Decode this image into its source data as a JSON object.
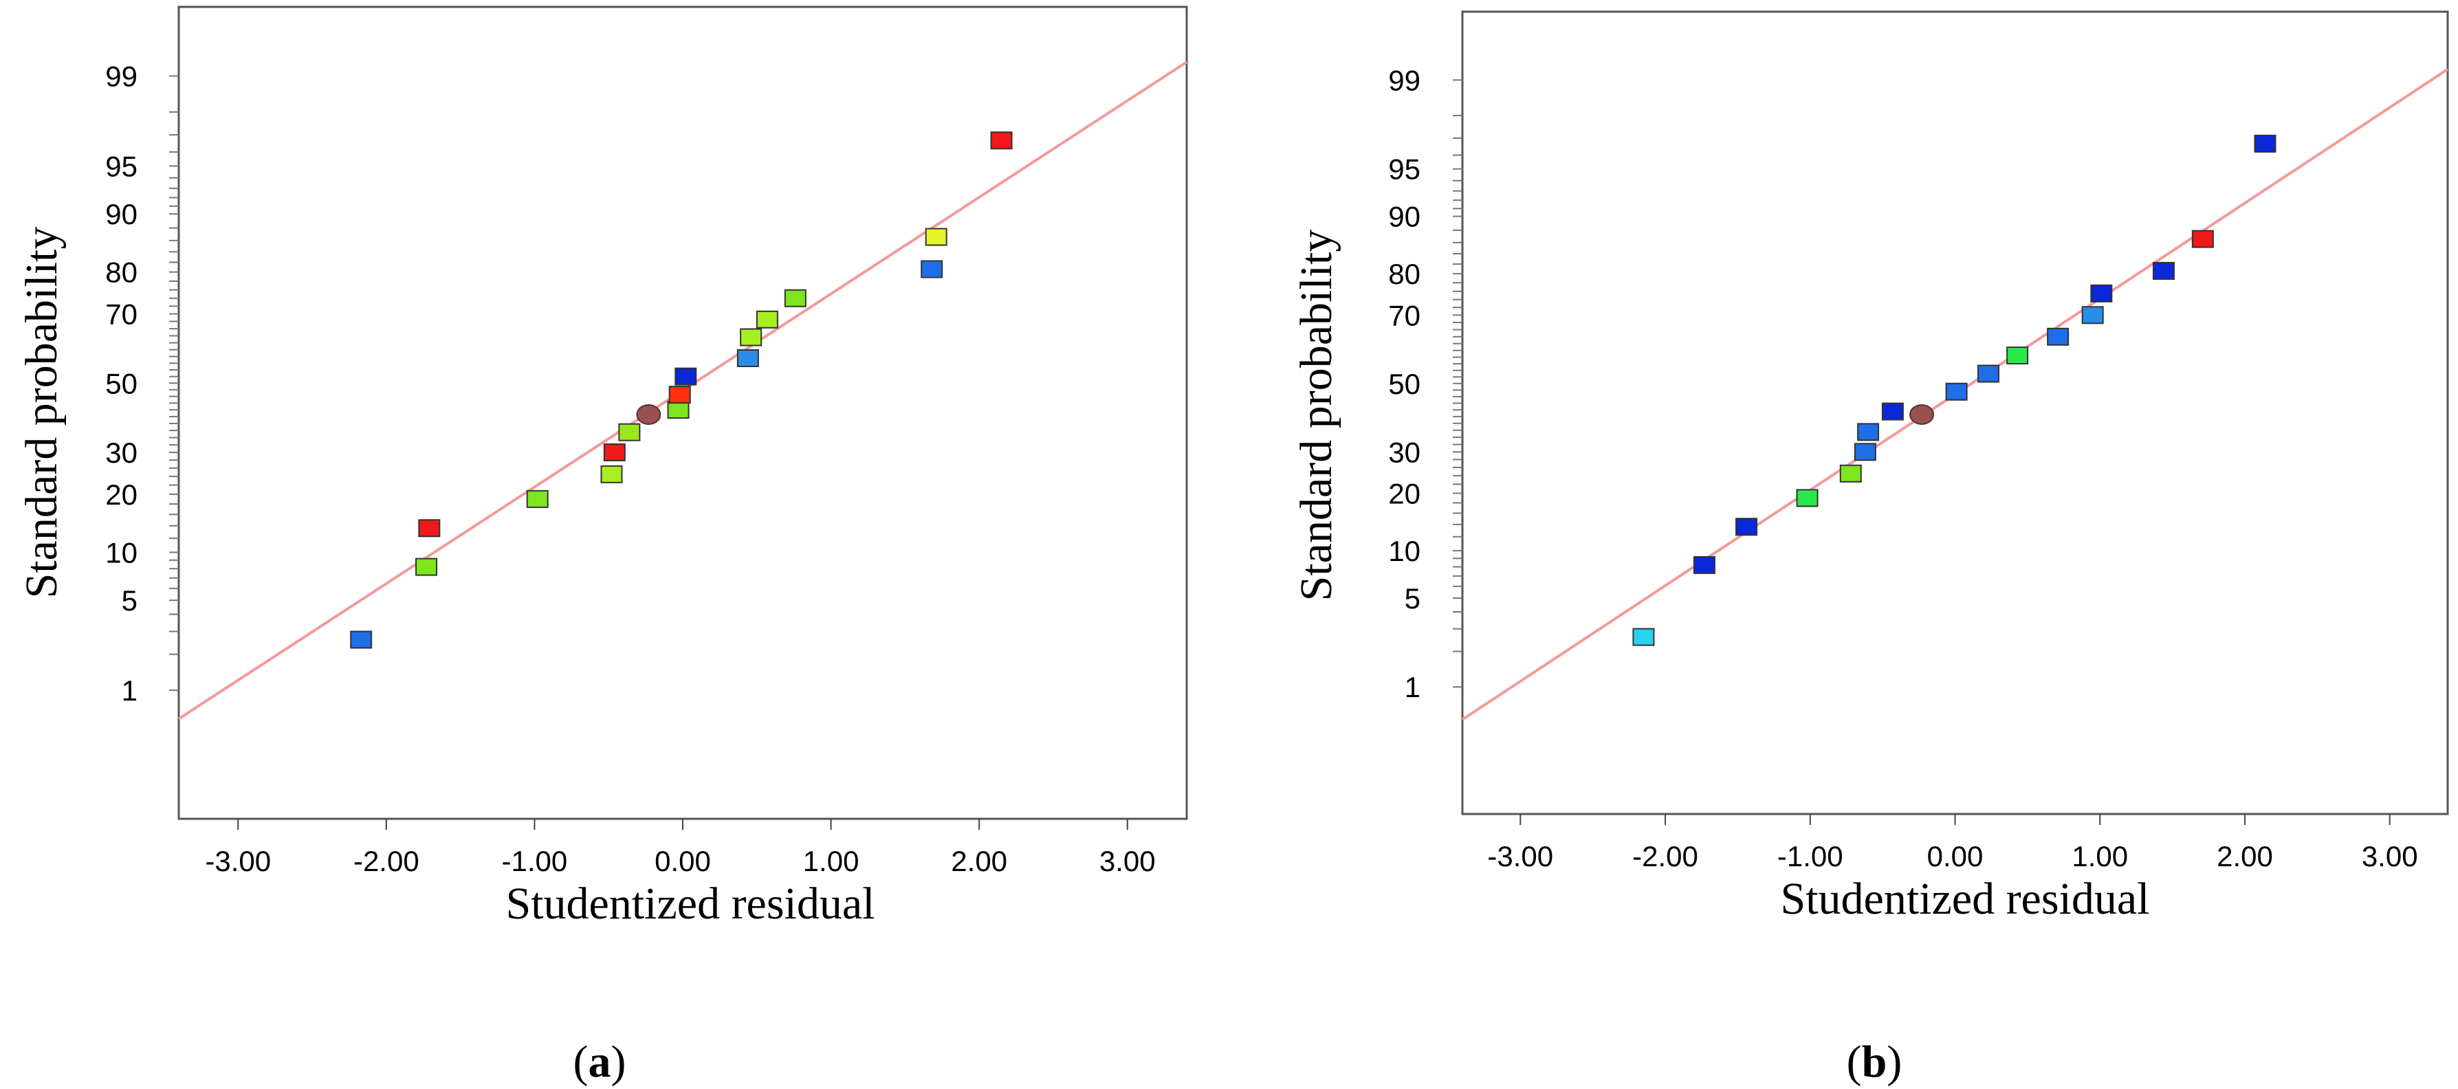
{
  "chart_data": [
    {
      "type": "scatter",
      "panel_label": "a",
      "xlabel": "Studentized residual",
      "ylabel": "Standard probability",
      "xlim": [
        -3.4,
        3.4
      ],
      "xticks": [
        "-3.00",
        "-2.00",
        "-1.00",
        "0.00",
        "1.00",
        "2.00",
        "3.00"
      ],
      "xtick_values": [
        -3,
        -2,
        -1,
        0,
        1,
        2,
        3
      ],
      "ylim_probit": [
        -3.3,
        2.85
      ],
      "yticks": [
        "1",
        "5",
        "10",
        "20",
        "30",
        "50",
        "70",
        "80",
        "90",
        "95",
        "99"
      ],
      "ytick_values": [
        1,
        5,
        10,
        20,
        30,
        50,
        70,
        80,
        90,
        95,
        99
      ],
      "fit_line": {
        "x": [
          -3.4,
          3.4
        ],
        "y": [
          0.55,
          99.25
        ],
        "color": "#f59a9a"
      },
      "points": [
        {
          "x": -2.17,
          "y": 2.6,
          "color": "#1e6ee8",
          "shape": "square"
        },
        {
          "x": -1.73,
          "y": 8.2,
          "color": "#7fe61e",
          "shape": "square"
        },
        {
          "x": -1.71,
          "y": 13.6,
          "color": "#f01818",
          "shape": "square"
        },
        {
          "x": -0.98,
          "y": 19.0,
          "color": "#7fe61e",
          "shape": "square"
        },
        {
          "x": -0.48,
          "y": 24.5,
          "color": "#a6f022",
          "shape": "square"
        },
        {
          "x": -0.46,
          "y": 30.0,
          "color": "#f01818",
          "shape": "square"
        },
        {
          "x": -0.36,
          "y": 35.5,
          "color": "#9ae81a",
          "shape": "square"
        },
        {
          "x": -0.23,
          "y": 40.6,
          "color": "#9a5050",
          "shape": "ellipse"
        },
        {
          "x": -0.03,
          "y": 42.0,
          "color": "#7fe61e",
          "shape": "square"
        },
        {
          "x": -0.02,
          "y": 46.5,
          "color": "#ff3010",
          "shape": "square"
        },
        {
          "x": 0.02,
          "y": 52.0,
          "color": "#0a28d8",
          "shape": "square"
        },
        {
          "x": 0.44,
          "y": 57.5,
          "color": "#2a8ee8",
          "shape": "square"
        },
        {
          "x": 0.46,
          "y": 63.6,
          "color": "#a6f022",
          "shape": "square"
        },
        {
          "x": 0.57,
          "y": 68.5,
          "color": "#a6f022",
          "shape": "square"
        },
        {
          "x": 0.76,
          "y": 74.0,
          "color": "#7fe61e",
          "shape": "square"
        },
        {
          "x": 1.68,
          "y": 80.6,
          "color": "#1e6ee8",
          "shape": "square"
        },
        {
          "x": 1.71,
          "y": 86.6,
          "color": "#e6f22a",
          "shape": "square"
        },
        {
          "x": 2.15,
          "y": 96.7,
          "color": "#f01818",
          "shape": "square"
        }
      ]
    },
    {
      "type": "scatter",
      "panel_label": "b",
      "xlabel": "Studentized residual",
      "ylabel": "Standard probability",
      "xlim": [
        -3.4,
        3.4
      ],
      "xticks": [
        "-3.00",
        "-2.00",
        "-1.00",
        "0.00",
        "1.00",
        "2.00",
        "3.00"
      ],
      "xtick_values": [
        -3,
        -2,
        -1,
        0,
        1,
        2,
        3
      ],
      "ylim_probit": [
        -3.3,
        2.85
      ],
      "yticks": [
        "1",
        "5",
        "10",
        "20",
        "30",
        "50",
        "70",
        "80",
        "90",
        "95",
        "99"
      ],
      "ytick_values": [
        1,
        5,
        10,
        20,
        30,
        50,
        70,
        80,
        90,
        95,
        99
      ],
      "fit_line": {
        "x": [
          -3.4,
          3.4
        ],
        "y": [
          0.5,
          99.2
        ],
        "color": "#f59a9a"
      },
      "points": [
        {
          "x": -2.15,
          "y": 2.6,
          "color": "#28d2f0",
          "shape": "square"
        },
        {
          "x": -1.73,
          "y": 8.2,
          "color": "#0a28d8",
          "shape": "square"
        },
        {
          "x": -1.44,
          "y": 13.6,
          "color": "#0a28d8",
          "shape": "square"
        },
        {
          "x": -1.02,
          "y": 19.0,
          "color": "#2ae84a",
          "shape": "square"
        },
        {
          "x": -0.72,
          "y": 24.5,
          "color": "#7fe61e",
          "shape": "square"
        },
        {
          "x": -0.62,
          "y": 30.0,
          "color": "#1e6ee8",
          "shape": "square"
        },
        {
          "x": -0.6,
          "y": 35.5,
          "color": "#1e6ee8",
          "shape": "square"
        },
        {
          "x": -0.23,
          "y": 40.6,
          "color": "#9a5050",
          "shape": "ellipse"
        },
        {
          "x": -0.43,
          "y": 41.5,
          "color": "#0a28d8",
          "shape": "square"
        },
        {
          "x": 0.01,
          "y": 47.5,
          "color": "#1e6ee8",
          "shape": "square"
        },
        {
          "x": 0.23,
          "y": 53.0,
          "color": "#1e6ee8",
          "shape": "square"
        },
        {
          "x": 0.43,
          "y": 58.5,
          "color": "#2ae84a",
          "shape": "square"
        },
        {
          "x": 0.71,
          "y": 64.0,
          "color": "#1e6ee8",
          "shape": "square"
        },
        {
          "x": 0.95,
          "y": 70.0,
          "color": "#2a8ee8",
          "shape": "square"
        },
        {
          "x": 1.01,
          "y": 75.5,
          "color": "#0a28d8",
          "shape": "square"
        },
        {
          "x": 1.44,
          "y": 80.6,
          "color": "#0a28d8",
          "shape": "square"
        },
        {
          "x": 1.71,
          "y": 86.6,
          "color": "#f01818",
          "shape": "square"
        },
        {
          "x": 2.14,
          "y": 96.7,
          "color": "#0a28d8",
          "shape": "square"
        }
      ]
    }
  ]
}
